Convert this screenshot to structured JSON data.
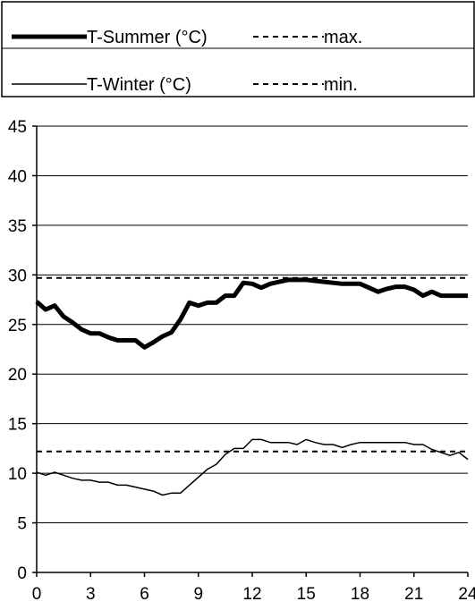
{
  "chart_data": {
    "type": "line",
    "xlim": [
      0,
      24
    ],
    "ylim": [
      0,
      45
    ],
    "xticks": [
      0,
      3,
      6,
      9,
      12,
      15,
      18,
      21,
      24
    ],
    "yticks": [
      0,
      5,
      10,
      15,
      20,
      25,
      30,
      35,
      40,
      45
    ],
    "grid": "horizontal",
    "legend_placement": "top",
    "series": [
      {
        "name": "T-Summer (°C)",
        "style": "thick-solid",
        "color": "#000000",
        "x": [
          0,
          0.5,
          1,
          1.5,
          2,
          2.5,
          3,
          3.5,
          4,
          4.5,
          5,
          5.5,
          6,
          6.5,
          7,
          7.5,
          8,
          8.5,
          9,
          9.5,
          10,
          10.5,
          11,
          11.5,
          12,
          12.5,
          13,
          13.5,
          14,
          14.5,
          15,
          15.5,
          16,
          16.5,
          17,
          17.5,
          18,
          18.5,
          19,
          19.5,
          20,
          20.5,
          21,
          21.5,
          22,
          22.5,
          23,
          23.5,
          24
        ],
        "values": [
          27.3,
          26.5,
          26.9,
          25.8,
          25.2,
          24.5,
          24.1,
          24.1,
          23.7,
          23.4,
          23.4,
          23.4,
          22.7,
          23.2,
          23.8,
          24.2,
          25.5,
          27.2,
          26.9,
          27.2,
          27.2,
          27.9,
          27.9,
          29.2,
          29.1,
          28.7,
          29.1,
          29.3,
          29.5,
          29.5,
          29.5,
          29.4,
          29.3,
          29.2,
          29.1,
          29.1,
          29.1,
          28.7,
          28.3,
          28.6,
          28.8,
          28.8,
          28.5,
          27.9,
          28.3,
          27.9,
          27.9,
          27.9,
          27.9
        ]
      },
      {
        "name": "T-Winter (°C)",
        "style": "thin-solid",
        "color": "#000000",
        "x": [
          0,
          0.5,
          1,
          1.5,
          2,
          2.5,
          3,
          3.5,
          4,
          4.5,
          5,
          5.5,
          6,
          6.5,
          7,
          7.5,
          8,
          8.5,
          9,
          9.5,
          10,
          10.5,
          11,
          11.5,
          12,
          12.5,
          13,
          13.5,
          14,
          14.5,
          15,
          15.5,
          16,
          16.5,
          17,
          17.5,
          18,
          18.5,
          19,
          19.5,
          20,
          20.5,
          21,
          21.5,
          22,
          22.5,
          23,
          23.5,
          24
        ],
        "values": [
          10.1,
          9.8,
          10.1,
          9.8,
          9.5,
          9.3,
          9.3,
          9.1,
          9.1,
          8.8,
          8.8,
          8.6,
          8.4,
          8.2,
          7.8,
          8.0,
          8.0,
          8.8,
          9.6,
          10.4,
          10.9,
          11.9,
          12.5,
          12.5,
          13.4,
          13.4,
          13.1,
          13.1,
          13.1,
          12.9,
          13.4,
          13.1,
          12.9,
          12.9,
          12.6,
          12.9,
          13.1,
          13.1,
          13.1,
          13.1,
          13.1,
          13.1,
          12.9,
          12.9,
          12.4,
          12.1,
          11.8,
          12.1,
          11.4
        ]
      },
      {
        "name": "max.",
        "style": "dashed",
        "color": "#000000",
        "x": [
          0,
          24
        ],
        "values": [
          29.7,
          29.7
        ]
      },
      {
        "name": "min.",
        "style": "dashed",
        "color": "#000000",
        "x": [
          0,
          24
        ],
        "values": [
          12.2,
          12.2
        ]
      }
    ]
  }
}
